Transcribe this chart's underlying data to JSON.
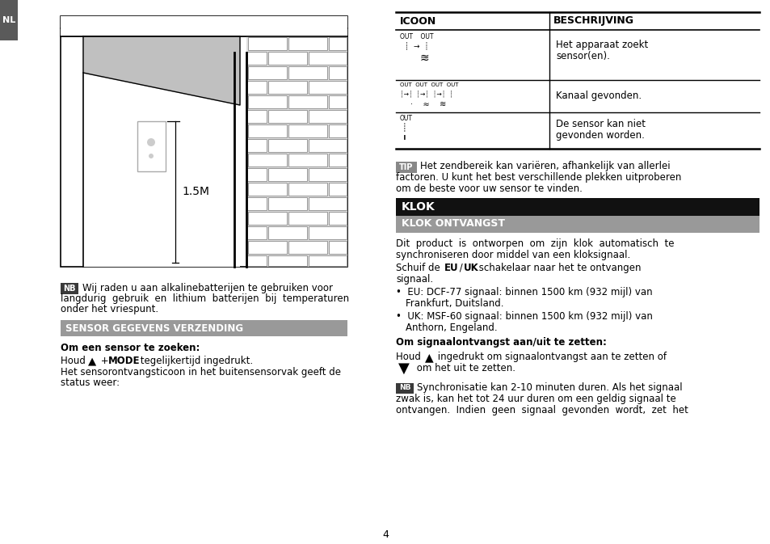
{
  "bg_color": "#ffffff",
  "page_number": "4",
  "nl_tab_color": "#5a5a5a",
  "nl_tab_text": "NL",
  "left": {
    "nb_badge_bg": "#3a3a3a",
    "nb_text1": "Wij raden u aan alkalinebatterijen te gebruiken voor",
    "nb_text2": "langdurig  gebruik  en  lithium  batterijen  bij  temperaturen",
    "nb_text3": "onder het vriespunt.",
    "sensor_header": "SENSOR GEGEVENS VERZENDING",
    "sensor_header_bg": "#999999",
    "bold1": "Om een sensor te zoeken:",
    "status_text1": "Het sensorontvangsticoon in het buitensensorvak geeft de",
    "status_text2": "status weer:"
  },
  "right": {
    "col1_header": "ICOON",
    "col2_header": "BESCHRIJVING",
    "row1_desc1": "Het apparaat zoekt",
    "row1_desc2": "sensor(en).",
    "row2_desc": "Kanaal gevonden.",
    "row3_desc1": "De sensor kan niet",
    "row3_desc2": "gevonden worden.",
    "tip_badge_bg": "#888888",
    "tip1": "Het zendbereik kan variëren, afhankelijk van allerlei",
    "tip2": "factoren. U kunt het best verschillende plekken uitproberen",
    "tip3": "om de beste voor uw sensor te vinden.",
    "klok_header": "KLOK",
    "klok_header_bg": "#111111",
    "klok_sub": "KLOK ONTVANGST",
    "klok_sub_bg": "#999999",
    "k1": "Dit  product  is  ontworpen  om  zijn  klok  automatisch  te",
    "k2": "synchroniseren door middel van een kloksignaal.",
    "k3": "Schuif de  EU  /  UK  schakelaar naar het te ontvangen",
    "k4": "signaal.",
    "eu1": "•  EU: DCF-77 signaal: binnen 1500 km (932 mijl) van",
    "eu2": "   Frankfurt, Duitsland.",
    "uk1": "•  UK: MSF-60 signaal: binnen 1500 km (932 mijl) van",
    "uk2": "   Anthorn, Engeland.",
    "om_bold": "Om signaalontvangst aan/uit te zetten:",
    "nb2_text1": "Synchronisatie kan 2-10 minuten duren. Als het signaal",
    "nb2_text2": "zwak is, kan het tot 24 uur duren om een geldig signaal te",
    "nb2_text3": "ontvangen.  Indien  geen  signaal  gevonden  wordt,  zet  het"
  }
}
